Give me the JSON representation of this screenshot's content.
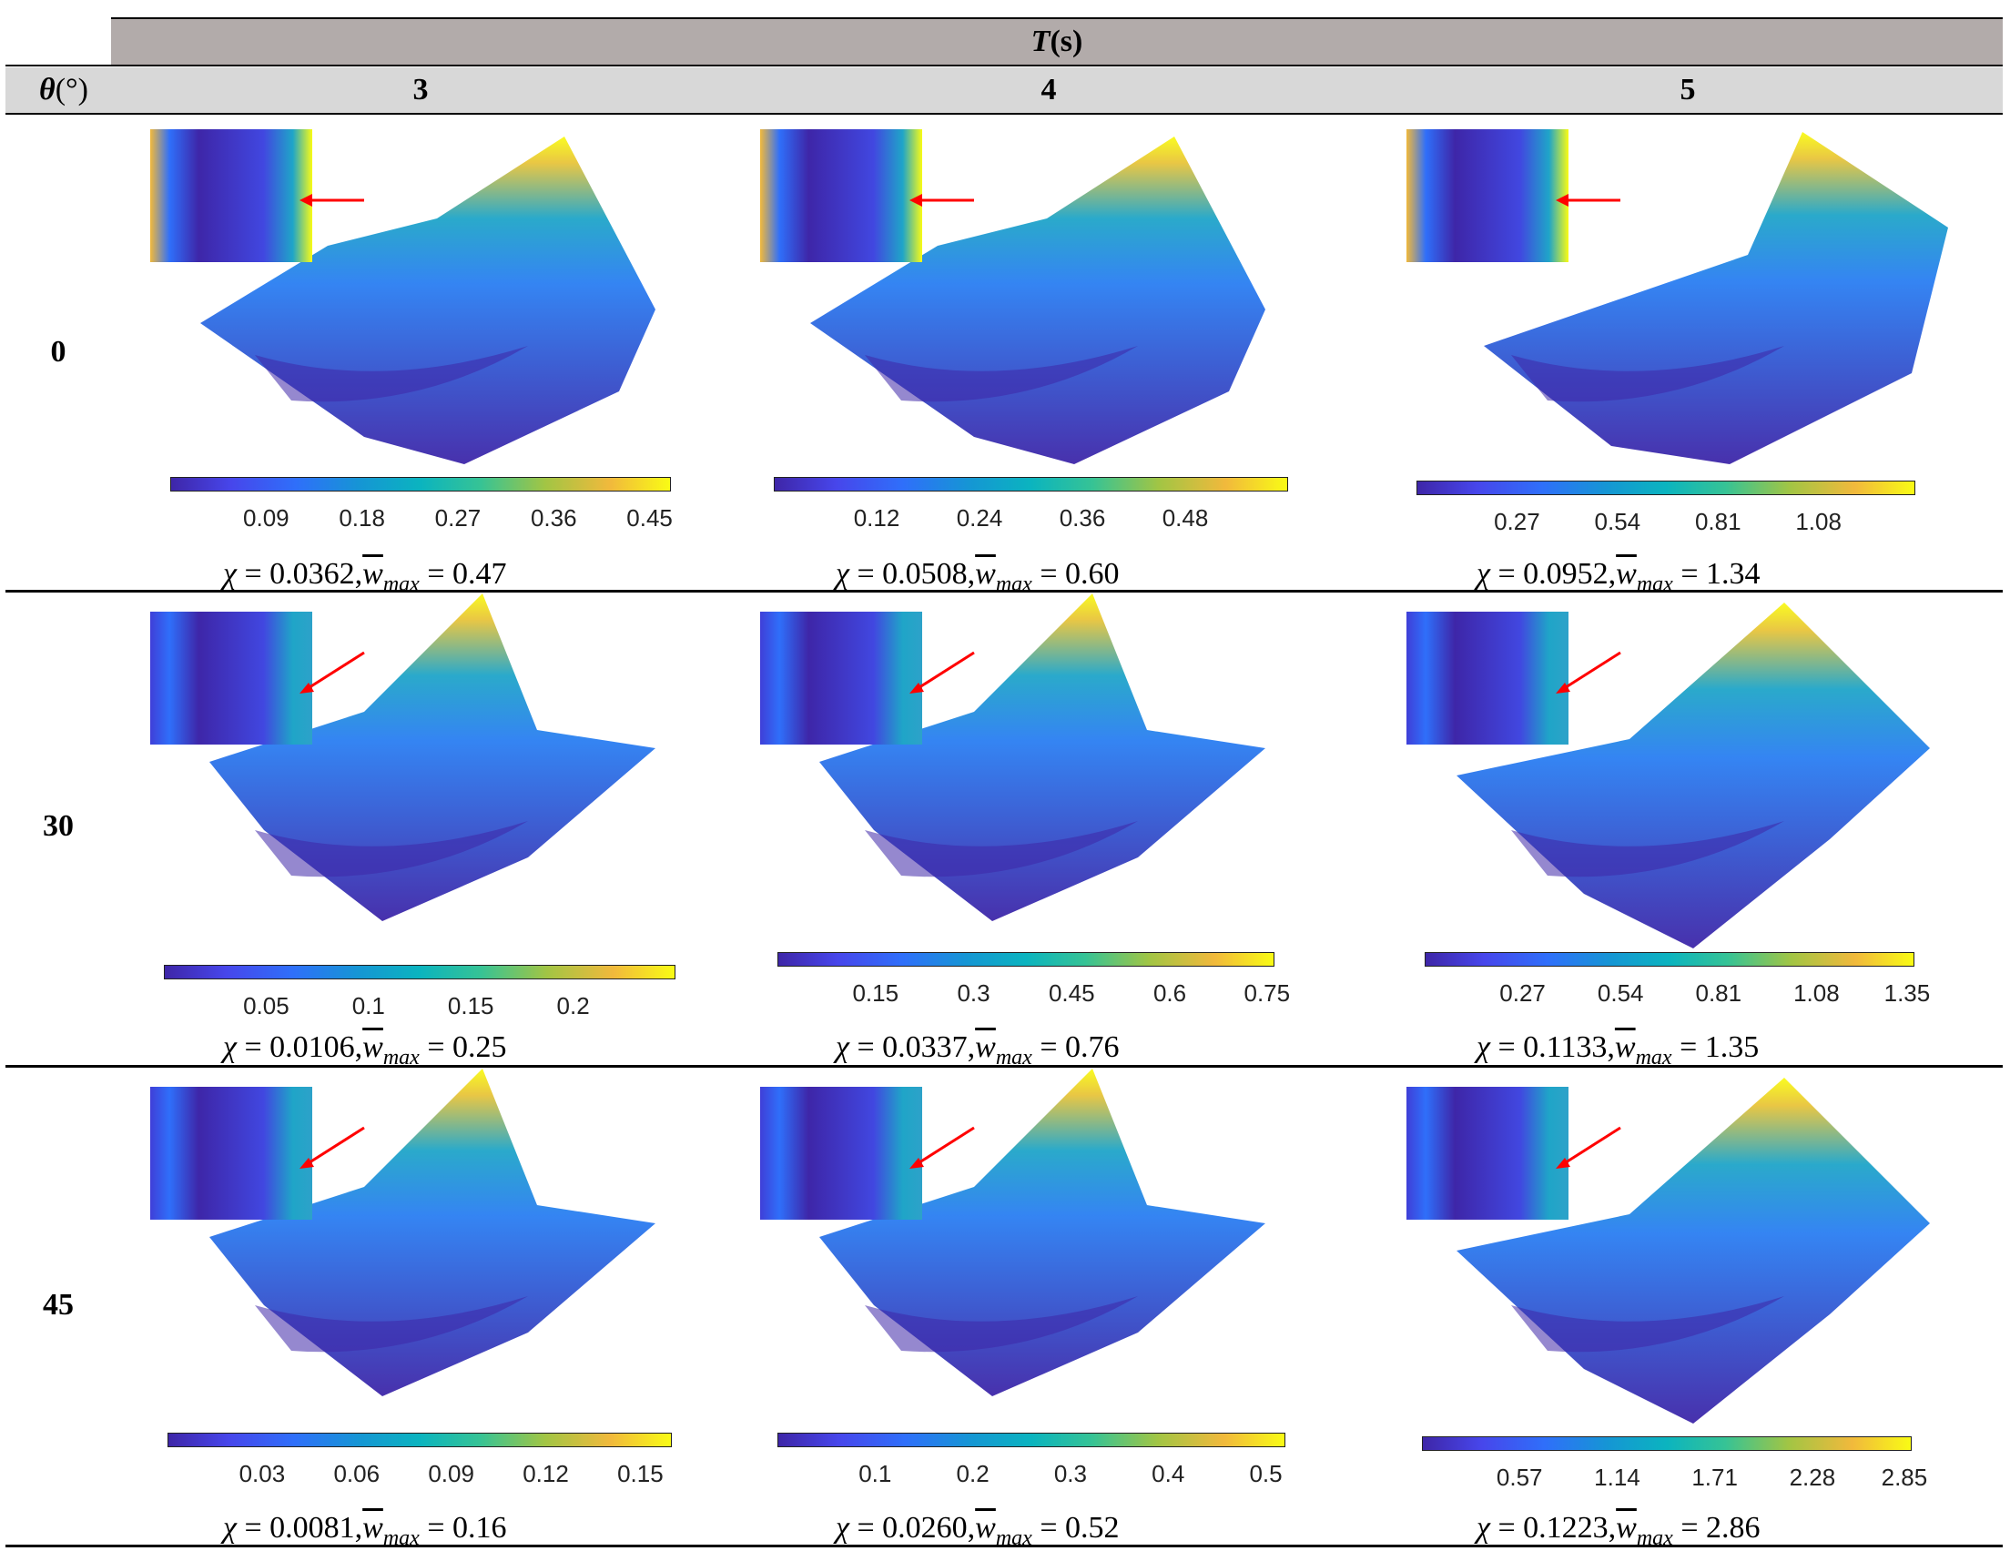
{
  "header": {
    "column_group_symbol": "T",
    "column_group_unit": "(s)",
    "row_header_symbol": "θ",
    "row_header_unit": "(°)",
    "columns": [
      "3",
      "4",
      "5"
    ]
  },
  "rows": [
    {
      "angle": "0",
      "cells": [
        {
          "ticks": [
            "0.09",
            "0.18",
            "0.27",
            "0.36",
            "0.45"
          ],
          "chi": "0.0362",
          "wmax": "0.47"
        },
        {
          "ticks": [
            "0.12",
            "0.24",
            "0.36",
            "0.48"
          ],
          "chi": "0.0508",
          "wmax": "0.60"
        },
        {
          "ticks": [
            "0.27",
            "0.54",
            "0.81",
            "1.08"
          ],
          "chi": "0.0952",
          "wmax": "1.34"
        }
      ]
    },
    {
      "angle": "30",
      "cells": [
        {
          "ticks": [
            "0.05",
            "0.1",
            "0.15",
            "0.2"
          ],
          "chi": "0.0106",
          "wmax": "0.25"
        },
        {
          "ticks": [
            "0.15",
            "0.3",
            "0.45",
            "0.6",
            "0.75"
          ],
          "chi": "0.0337",
          "wmax": "0.76"
        },
        {
          "ticks": [
            "0.27",
            "0.54",
            "0.81",
            "1.08",
            "1.35"
          ],
          "chi": "0.1133",
          "wmax": "1.35"
        }
      ]
    },
    {
      "angle": "45",
      "cells": [
        {
          "ticks": [
            "0.03",
            "0.06",
            "0.09",
            "0.12",
            "0.15"
          ],
          "chi": "0.0081",
          "wmax": "0.16"
        },
        {
          "ticks": [
            "0.1",
            "0.2",
            "0.3",
            "0.4",
            "0.5"
          ],
          "chi": "0.0260",
          "wmax": "0.52"
        },
        {
          "ticks": [
            "0.57",
            "1.14",
            "1.71",
            "2.28",
            "2.85"
          ],
          "chi": "0.1223",
          "wmax": "2.86"
        }
      ]
    }
  ],
  "caption_labels": {
    "chi_symbol": "χ",
    "equals": " = ",
    "separator": ",",
    "w_symbol": "w",
    "w_subscript": "max"
  },
  "colors": {
    "surface_low": "#3e26a8",
    "surface_mid": "#1fa5c8",
    "surface_high": "#f9fb15",
    "arrow": "#ff0000"
  }
}
